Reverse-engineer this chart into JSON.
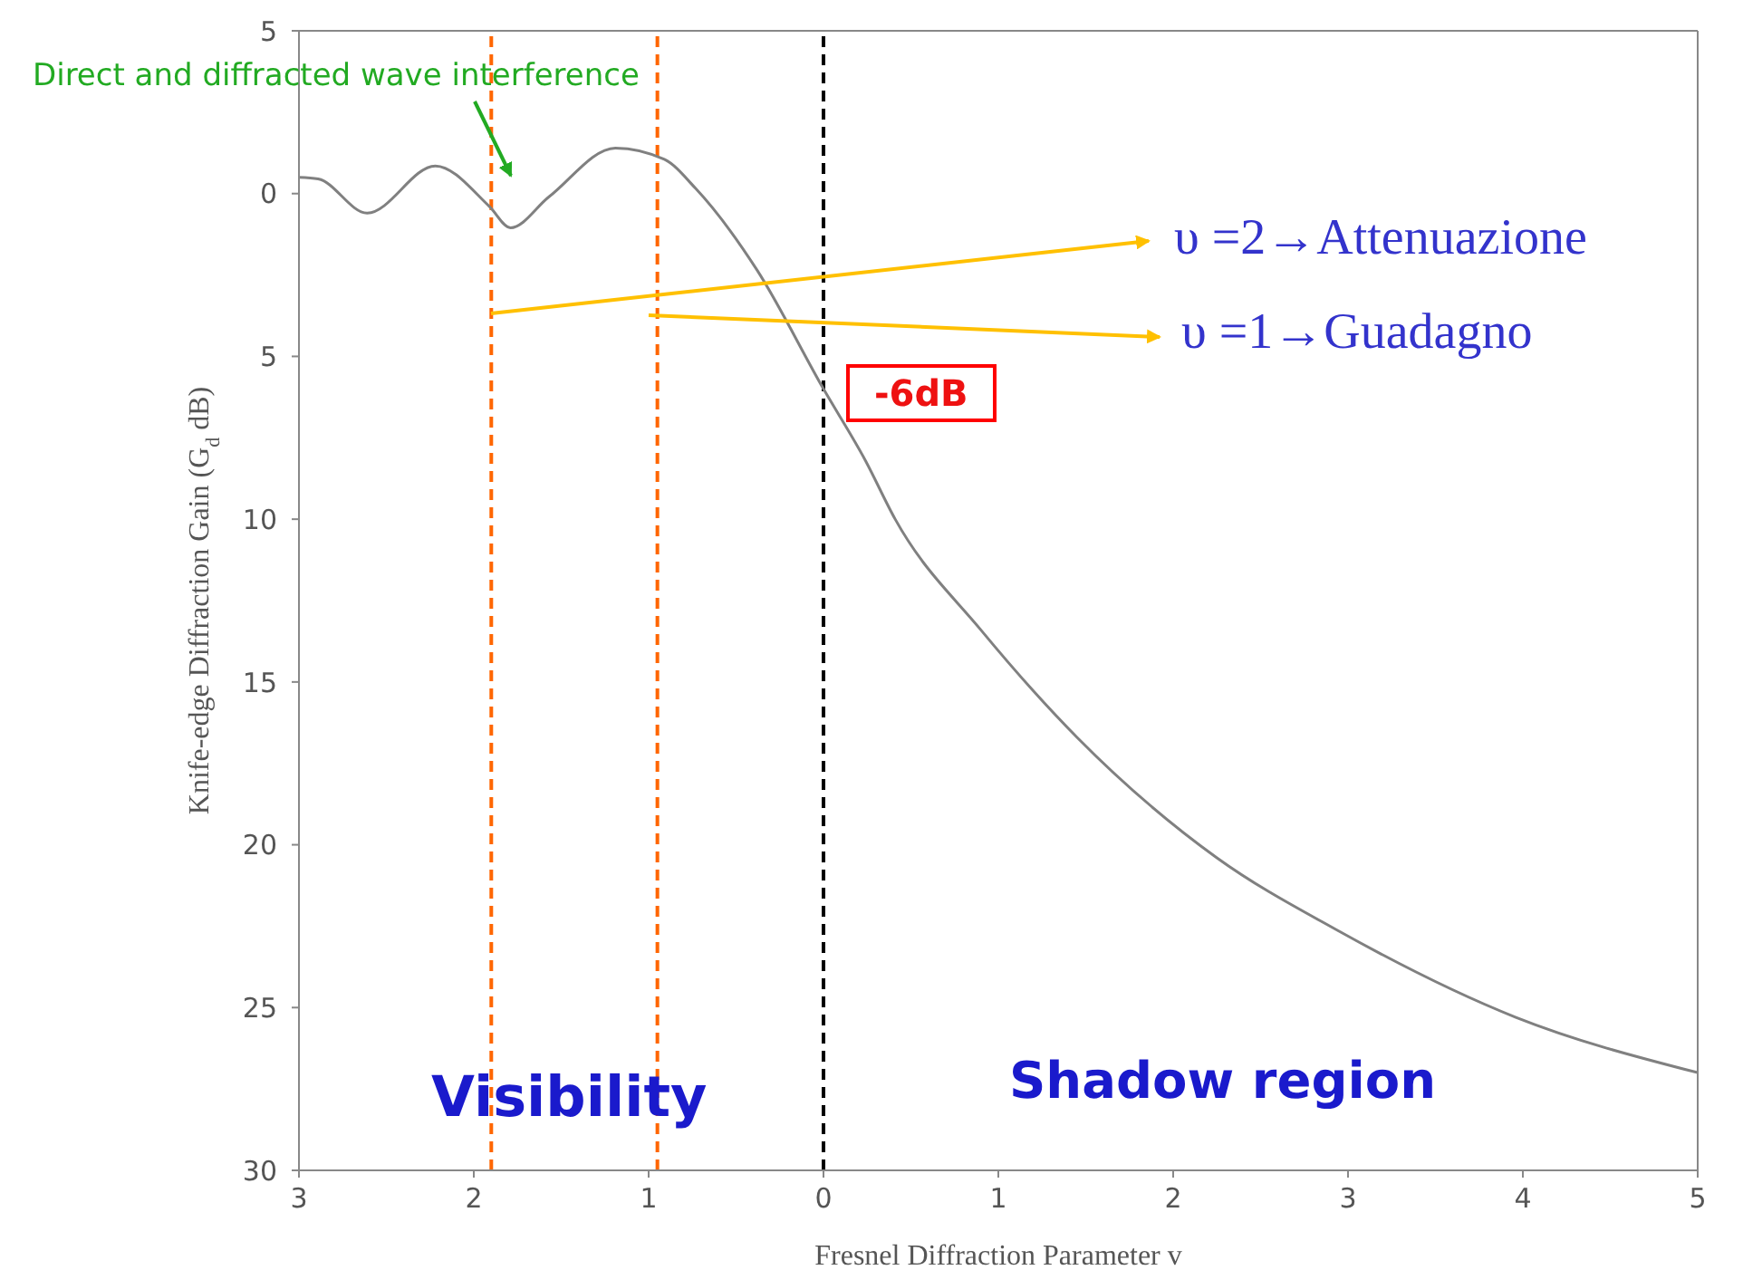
{
  "chart_data": {
    "type": "line",
    "xlabel": "Fresnel Diffraction Parameter v",
    "ylabel": "Knife-edge Diffraction Gain (G$_{d}$ dB)",
    "x": [
      -3,
      -2.89,
      -2.61,
      -2.22,
      -1.91,
      -1.79,
      -1.57,
      -1.19,
      -0.91,
      -0.73,
      -0.38,
      0,
      0.24,
      0.41,
      0.9,
      1.45,
      2.25,
      2.93,
      3.96,
      5
    ],
    "series": [
      {
        "color": "#808080",
        "values": [
          -0.5,
          -0.45,
          0.6,
          -0.85,
          0.4,
          1.05,
          0.1,
          -1.4,
          -1.05,
          -0.15,
          2.35,
          6,
          8.2,
          10,
          13.4,
          16.7,
          20.4,
          22.6,
          25.3,
          27
        ]
      }
    ],
    "xlim": [
      -3,
      5
    ],
    "xticks": [
      {
        "value": -3,
        "label": "3"
      },
      {
        "value": -2,
        "label": "2"
      },
      {
        "value": -1,
        "label": "1"
      },
      0,
      1,
      2,
      3,
      4,
      5
    ],
    "ylim": [
      30,
      -5
    ],
    "yticks": [
      {
        "value": -5,
        "label": "5"
      },
      0,
      5,
      10,
      15,
      20,
      25,
      30
    ],
    "marker": "none",
    "line_style": "solid",
    "ref_lines": [
      {
        "axis": "x",
        "value": -1.9,
        "color": "#ff6600",
        "line_style": "dashed"
      },
      {
        "axis": "x",
        "value": -0.95,
        "color": "#ff6600",
        "line_style": "dashed"
      },
      {
        "axis": "x",
        "value": 0,
        "color": "#000000",
        "line_style": "dashed"
      }
    ],
    "annotations": [
      "Direct and diffracted wave interference",
      "υ =2→Attenuazione",
      "υ =1→Guadagno",
      {
        "text": "-6dB",
        "x": 0,
        "y": 6
      },
      "Visibility",
      "Shadow region"
    ]
  }
}
